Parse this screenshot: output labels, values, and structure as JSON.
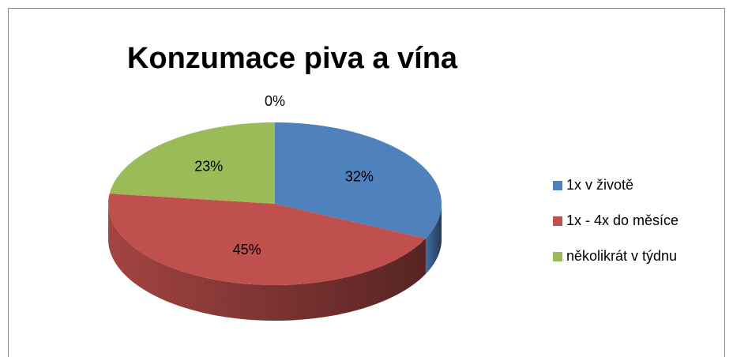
{
  "chart_data": {
    "type": "pie",
    "title": "Konzumace piva a vína",
    "categories": [
      "1x v životě",
      "1x - 4x do měsíce",
      "několikrát v týdnu",
      null
    ],
    "values": [
      32,
      45,
      23,
      0
    ],
    "value_labels": [
      "32%",
      "45%",
      "23%",
      "0%"
    ],
    "colors": [
      "#4f81bd",
      "#c0504d",
      "#9bbb59",
      "#8064a2"
    ],
    "legend": "right"
  }
}
